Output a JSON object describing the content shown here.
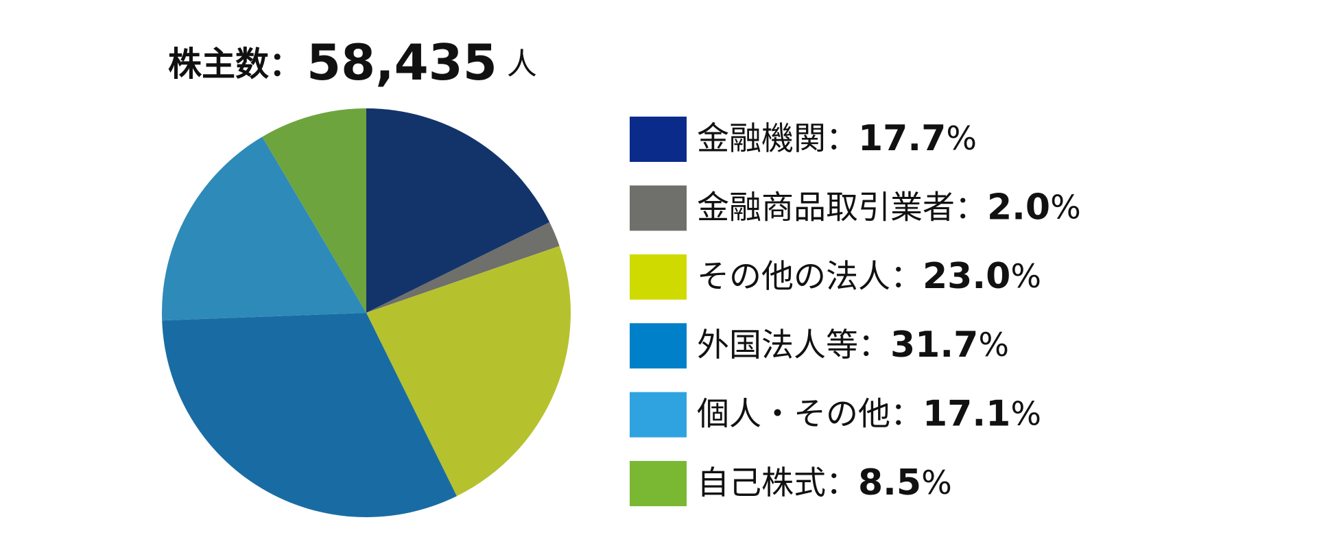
{
  "chart_data": {
    "type": "pie",
    "title": {
      "label": "株主数：",
      "count": "58,435",
      "unit": "人"
    },
    "categories": [
      "金融機関",
      "金融商品取引業者",
      "その他の法人",
      "外国法人等",
      "個人・その他",
      "自己株式"
    ],
    "values": [
      17.7,
      2.0,
      23.0,
      31.7,
      17.1,
      8.5
    ],
    "value_labels": [
      "17.7",
      "2.0",
      "23.0",
      "31.7",
      "17.1",
      "8.5"
    ],
    "separator": "：",
    "unit": "%",
    "colors": [
      "#13346a",
      "#6f6f6b",
      "#b5c22e",
      "#196ca3",
      "#2e8ab8",
      "#6ea43e"
    ],
    "legend_colors": [
      "#0b2b8b",
      "#6f6f6b",
      "#cfdb00",
      "#0080c8",
      "#2ea3e0",
      "#7ab833"
    ],
    "legend": "right"
  }
}
